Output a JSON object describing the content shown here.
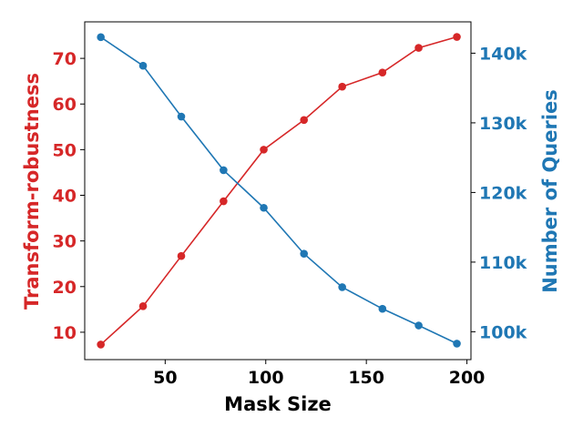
{
  "chart_data": {
    "type": "line",
    "xlabel": "Mask Size",
    "ylabel_left": "Transform-robustness",
    "ylabel_right": "Number of Queries",
    "xlim": [
      10,
      202
    ],
    "ylim_left": [
      4,
      78
    ],
    "ylim_right": [
      96000,
      144500
    ],
    "x_ticks": [
      50,
      100,
      150,
      200
    ],
    "y_ticks_left": [
      10,
      20,
      30,
      40,
      50,
      60,
      70
    ],
    "y_ticks_right": [
      100000,
      110000,
      120000,
      130000,
      140000
    ],
    "y_tick_labels_right": [
      "100k",
      "110k",
      "120k",
      "130k",
      "140k"
    ],
    "colors": {
      "left": "#d62728",
      "right": "#1f77b4"
    },
    "series": [
      {
        "axis": "left",
        "color": "#d62728",
        "x": [
          18,
          39,
          58,
          79,
          99,
          119,
          138,
          158,
          176,
          195
        ],
        "values": [
          7.3,
          15.7,
          26.7,
          38.7,
          50,
          56.5,
          63.8,
          66.9,
          72.3,
          74.7
        ]
      },
      {
        "axis": "right",
        "color": "#1f77b4",
        "x": [
          18,
          39,
          58,
          79,
          99,
          119,
          138,
          158,
          176,
          195
        ],
        "values": [
          142300,
          138200,
          130900,
          123200,
          117800,
          111200,
          106400,
          103300,
          100900,
          98300
        ]
      }
    ]
  }
}
